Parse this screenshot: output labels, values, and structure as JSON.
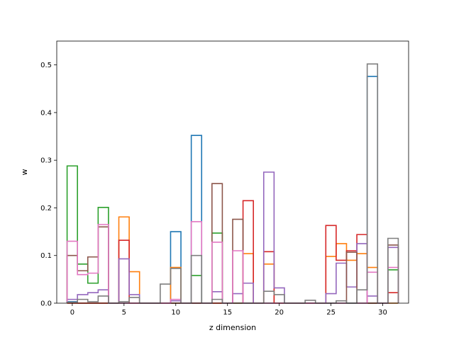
{
  "chart_data": {
    "type": "step",
    "title": "",
    "xlabel": "z dimension",
    "ylabel": "w",
    "xlim": [
      -1.5,
      32.5
    ],
    "ylim": [
      0,
      0.55
    ],
    "xticks": [
      0,
      5,
      10,
      15,
      20,
      25,
      30
    ],
    "yticks": [
      0.0,
      0.1,
      0.2,
      0.3,
      0.4,
      0.5
    ],
    "grid": false,
    "legend": "none",
    "series": [
      {
        "color": "#1f77b4",
        "values": [
          0.003,
          0.0,
          0.0,
          0.0,
          0.0,
          0.0,
          0.0,
          0.0,
          0.0,
          0.0,
          0.15,
          0.0,
          0.352,
          0.0,
          0.0,
          0.0,
          0.0,
          0.0,
          0.0,
          0.0,
          0.0,
          0.0,
          0.0,
          0.0,
          0.0,
          0.0,
          0.0,
          0.0,
          0.0,
          0.476,
          0.0,
          0.0
        ]
      },
      {
        "color": "#ff7f0e",
        "values": [
          0.0,
          0.0,
          0.0,
          0.0,
          0.0,
          0.181,
          0.066,
          0.0,
          0.0,
          0.0,
          0.075,
          0.0,
          0.0,
          0.0,
          0.0,
          0.0,
          0.0,
          0.104,
          0.0,
          0.082,
          0.0,
          0.0,
          0.0,
          0.0,
          0.0,
          0.098,
          0.125,
          0.09,
          0.104,
          0.075,
          0.0,
          0.0
        ]
      },
      {
        "color": "#2ca02c",
        "values": [
          0.288,
          0.082,
          0.042,
          0.201,
          0.0,
          0.0,
          0.0,
          0.0,
          0.0,
          0.0,
          0.0,
          0.0,
          0.058,
          0.0,
          0.147,
          0.0,
          0.0,
          0.0,
          0.0,
          0.0,
          0.0,
          0.0,
          0.0,
          0.0,
          0.0,
          0.0,
          0.0,
          0.0,
          0.0,
          0.0,
          0.0,
          0.07
        ]
      },
      {
        "color": "#d62728",
        "values": [
          0.0,
          0.0,
          0.0,
          0.0,
          0.0,
          0.132,
          0.0,
          0.0,
          0.0,
          0.0,
          0.0,
          0.0,
          0.0,
          0.0,
          0.0,
          0.0,
          0.0,
          0.215,
          0.0,
          0.108,
          0.0,
          0.0,
          0.0,
          0.0,
          0.0,
          0.163,
          0.09,
          0.11,
          0.144,
          0.0,
          0.0,
          0.022
        ]
      },
      {
        "color": "#9467bd",
        "values": [
          0.008,
          0.018,
          0.022,
          0.028,
          0.0,
          0.093,
          0.018,
          0.0,
          0.0,
          0.0,
          0.005,
          0.0,
          0.0,
          0.0,
          0.024,
          0.0,
          0.02,
          0.042,
          0.0,
          0.275,
          0.032,
          0.0,
          0.0,
          0.0,
          0.0,
          0.02,
          0.084,
          0.034,
          0.125,
          0.015,
          0.0,
          0.117
        ]
      },
      {
        "color": "#8c564b",
        "values": [
          0.1,
          0.068,
          0.097,
          0.16,
          0.0,
          0.0,
          0.0,
          0.0,
          0.0,
          0.0,
          0.0,
          0.0,
          0.0,
          0.0,
          0.251,
          0.0,
          0.176,
          0.0,
          0.0,
          0.0,
          0.0,
          0.0,
          0.0,
          0.0,
          0.0,
          0.0,
          0.0,
          0.107,
          0.0,
          0.0,
          0.0,
          0.122
        ]
      },
      {
        "color": "#e377c2",
        "values": [
          0.13,
          0.06,
          0.063,
          0.165,
          0.0,
          0.0,
          0.0,
          0.0,
          0.0,
          0.0,
          0.008,
          0.0,
          0.171,
          0.0,
          0.128,
          0.0,
          0.11,
          0.0,
          0.0,
          0.0,
          0.0,
          0.0,
          0.0,
          0.0,
          0.0,
          0.0,
          0.0,
          0.0,
          0.0,
          0.065,
          0.0,
          0.075
        ]
      },
      {
        "color": "#7f7f7f",
        "values": [
          0.002,
          0.008,
          0.003,
          0.015,
          0.0,
          0.003,
          0.012,
          0.0,
          0.0,
          0.04,
          0.073,
          0.0,
          0.1,
          0.0,
          0.008,
          0.0,
          0.0,
          0.0,
          0.0,
          0.025,
          0.018,
          0.0,
          0.0,
          0.006,
          0.0,
          0.0,
          0.005,
          0.0,
          0.028,
          0.502,
          0.0,
          0.136
        ]
      }
    ]
  }
}
